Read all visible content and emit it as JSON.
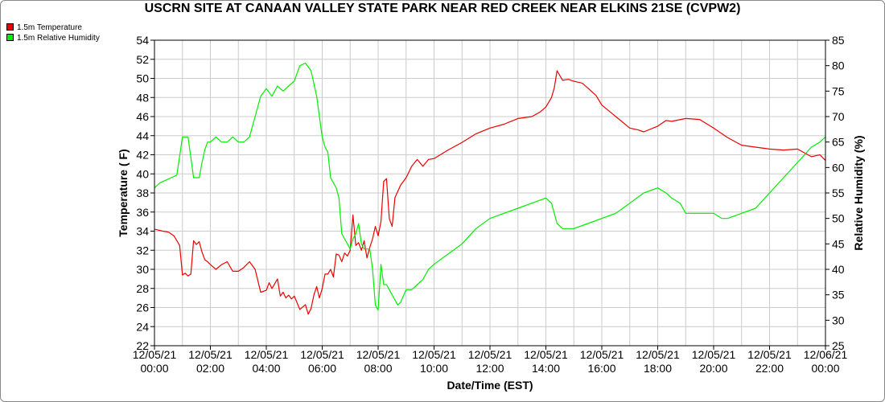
{
  "chart_data": {
    "type": "line",
    "title": "USCRN SITE AT CANAAN VALLEY STATE PARK NEAR RED CREEK NEAR ELKINS 21SE (CVPW2)",
    "xlabel": "Date/Time (EST)",
    "ylabel_left": "Temperature ( F)",
    "ylabel_right": "Relative Humidity (%)",
    "xlim_hours": [
      0,
      24
    ],
    "ylim_left": [
      22,
      54
    ],
    "ylim_right": [
      25,
      85
    ],
    "yticks_left": [
      22,
      24,
      26,
      28,
      30,
      32,
      34,
      36,
      38,
      40,
      42,
      44,
      46,
      48,
      50,
      52,
      54
    ],
    "yticks_right": [
      25,
      30,
      35,
      40,
      45,
      50,
      55,
      60,
      65,
      70,
      75,
      80,
      85
    ],
    "xticks": [
      {
        "hour": 0,
        "date": "12/05/21",
        "time": "00:00"
      },
      {
        "hour": 2,
        "date": "12/05/21",
        "time": "02:00"
      },
      {
        "hour": 4,
        "date": "12/05/21",
        "time": "04:00"
      },
      {
        "hour": 6,
        "date": "12/05/21",
        "time": "06:00"
      },
      {
        "hour": 8,
        "date": "12/05/21",
        "time": "08:00"
      },
      {
        "hour": 10,
        "date": "12/05/21",
        "time": "10:00"
      },
      {
        "hour": 12,
        "date": "12/05/21",
        "time": "12:00"
      },
      {
        "hour": 14,
        "date": "12/05/21",
        "time": "14:00"
      },
      {
        "hour": 16,
        "date": "12/05/21",
        "time": "16:00"
      },
      {
        "hour": 18,
        "date": "12/05/21",
        "time": "18:00"
      },
      {
        "hour": 20,
        "date": "12/05/21",
        "time": "20:00"
      },
      {
        "hour": 22,
        "date": "12/05/21",
        "time": "22:00"
      },
      {
        "hour": 24,
        "date": "12/06/21",
        "time": "00:00"
      }
    ],
    "grid": true,
    "legend_position": "top-left",
    "series": [
      {
        "name": "1.5m Temperature",
        "axis": "left",
        "color": "#ee0000",
        "x": [
          0,
          0.3,
          0.5,
          0.7,
          0.9,
          1.0,
          1.1,
          1.2,
          1.3,
          1.4,
          1.5,
          1.6,
          1.7,
          1.8,
          1.9,
          2.0,
          2.2,
          2.4,
          2.6,
          2.8,
          3.0,
          3.2,
          3.4,
          3.6,
          3.8,
          4.0,
          4.1,
          4.2,
          4.4,
          4.5,
          4.6,
          4.7,
          4.8,
          4.9,
          5.0,
          5.2,
          5.4,
          5.5,
          5.6,
          5.7,
          5.8,
          5.9,
          6.0,
          6.1,
          6.2,
          6.3,
          6.4,
          6.5,
          6.6,
          6.7,
          6.8,
          6.9,
          7.0,
          7.1,
          7.2,
          7.3,
          7.4,
          7.5,
          7.6,
          7.7,
          7.8,
          7.9,
          8.0,
          8.1,
          8.2,
          8.3,
          8.4,
          8.5,
          8.6,
          8.8,
          9.0,
          9.2,
          9.4,
          9.6,
          9.8,
          10.0,
          10.5,
          11.0,
          11.5,
          12.0,
          12.5,
          13.0,
          13.5,
          13.8,
          14.0,
          14.1,
          14.2,
          14.3,
          14.4,
          14.6,
          14.8,
          15.0,
          15.3,
          15.5,
          15.8,
          16.0,
          16.5,
          17.0,
          17.3,
          17.5,
          18.0,
          18.3,
          18.5,
          19.0,
          19.5,
          20.0,
          20.3,
          20.5,
          21.0,
          21.5,
          22.0,
          22.5,
          23.0,
          23.5,
          23.8,
          24.0
        ],
        "y": [
          34.2,
          34.0,
          33.9,
          33.5,
          32.5,
          29.4,
          29.6,
          29.3,
          29.5,
          33.0,
          32.6,
          32.9,
          31.8,
          31.0,
          30.8,
          30.5,
          30.0,
          30.5,
          30.8,
          29.8,
          29.8,
          30.2,
          30.8,
          30.0,
          27.6,
          27.8,
          28.6,
          28.0,
          29.0,
          27.2,
          27.6,
          27.0,
          27.3,
          26.9,
          27.2,
          25.8,
          26.3,
          25.3,
          25.9,
          27.3,
          28.2,
          27.0,
          28.0,
          29.5,
          29.5,
          30.0,
          29.2,
          31.6,
          31.5,
          30.8,
          31.7,
          31.4,
          32.0,
          35.7,
          32.5,
          32.8,
          32.0,
          33.0,
          31.2,
          32.3,
          33.2,
          34.5,
          33.5,
          35.0,
          39.2,
          39.5,
          35.3,
          34.5,
          37.5,
          38.8,
          39.6,
          40.8,
          41.5,
          40.8,
          41.5,
          41.6,
          42.5,
          43.3,
          44.2,
          44.8,
          45.2,
          45.8,
          46.0,
          46.5,
          47.0,
          47.5,
          48.0,
          49.0,
          50.8,
          49.8,
          49.9,
          49.7,
          49.5,
          49.0,
          48.2,
          47.2,
          46.0,
          44.8,
          44.6,
          44.4,
          45.0,
          45.6,
          45.5,
          45.8,
          45.7,
          44.8,
          44.2,
          43.8,
          43.0,
          42.8,
          42.6,
          42.5,
          42.6,
          41.8,
          42.0,
          41.4
        ]
      },
      {
        "name": "1.5m Relative Humidity",
        "axis": "right",
        "color": "#00ee00",
        "x": [
          0,
          0.2,
          0.4,
          0.6,
          0.8,
          1.0,
          1.1,
          1.2,
          1.3,
          1.4,
          1.5,
          1.6,
          1.7,
          1.8,
          1.9,
          2.0,
          2.2,
          2.4,
          2.6,
          2.8,
          3.0,
          3.2,
          3.4,
          3.6,
          3.8,
          4.0,
          4.2,
          4.4,
          4.6,
          4.8,
          5.0,
          5.2,
          5.4,
          5.6,
          5.8,
          5.9,
          6.0,
          6.1,
          6.2,
          6.3,
          6.4,
          6.5,
          6.6,
          6.7,
          6.8,
          6.9,
          7.0,
          7.1,
          7.2,
          7.3,
          7.4,
          7.5,
          7.6,
          7.7,
          7.8,
          7.9,
          8.0,
          8.1,
          8.2,
          8.3,
          8.4,
          8.5,
          8.6,
          8.7,
          8.8,
          9.0,
          9.2,
          9.4,
          9.6,
          9.8,
          10.0,
          10.5,
          11.0,
          11.5,
          12.0,
          12.5,
          13.0,
          13.5,
          14.0,
          14.2,
          14.4,
          14.6,
          14.8,
          15.0,
          15.5,
          16.0,
          16.5,
          17.0,
          17.5,
          18.0,
          18.3,
          18.5,
          18.8,
          19.0,
          19.5,
          20.0,
          20.3,
          20.5,
          21.0,
          21.5,
          22.0,
          22.5,
          23.0,
          23.5,
          23.8,
          24.0
        ],
        "y": [
          56,
          57,
          57.5,
          58,
          58.5,
          66,
          66,
          66,
          62,
          58,
          58,
          58,
          61,
          63.5,
          65,
          65,
          66,
          65,
          65,
          66,
          65,
          65,
          66,
          70,
          74,
          75.5,
          74,
          76,
          75,
          76,
          77,
          80,
          80.5,
          79,
          74,
          70,
          66,
          64,
          63,
          58,
          57,
          56,
          54,
          47,
          46,
          45,
          44,
          46,
          47,
          49,
          45,
          44,
          44,
          44,
          40,
          33,
          32,
          41,
          37,
          37,
          36,
          35,
          34,
          33,
          33.5,
          36,
          36,
          37,
          38,
          40,
          41,
          43,
          45,
          48,
          50,
          51,
          52,
          53,
          54,
          53,
          49,
          48,
          48,
          48,
          49,
          50,
          51,
          53,
          55,
          56,
          55,
          54,
          53,
          51,
          51,
          51,
          50,
          50,
          51,
          52,
          55,
          58,
          61,
          64,
          65,
          66
        ]
      }
    ]
  }
}
